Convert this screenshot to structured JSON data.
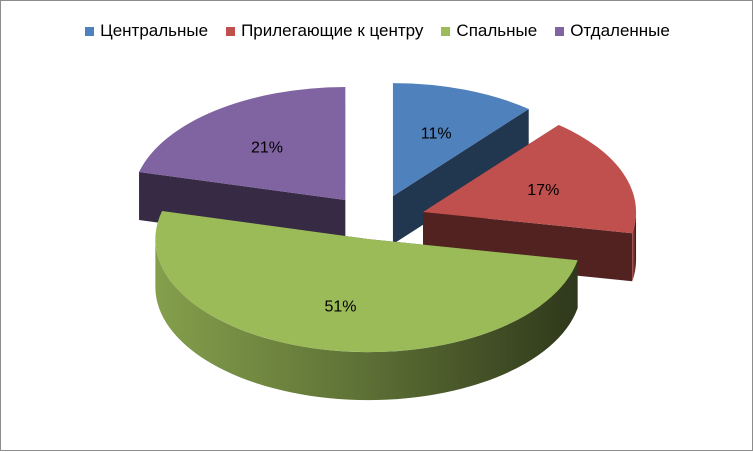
{
  "chart_data": {
    "type": "pie",
    "categories": [
      "Центральные",
      "Прилегающие к центру",
      "Спальные",
      "Отдаленные"
    ],
    "values": [
      11,
      17,
      51,
      21
    ],
    "data_labels": [
      "11%",
      "17%",
      "51%",
      "21%"
    ],
    "colors": [
      "#4f81bd",
      "#c0504d",
      "#9bbb59",
      "#8064a2"
    ],
    "legend_position": "top",
    "three_d": true,
    "exploded": true
  }
}
